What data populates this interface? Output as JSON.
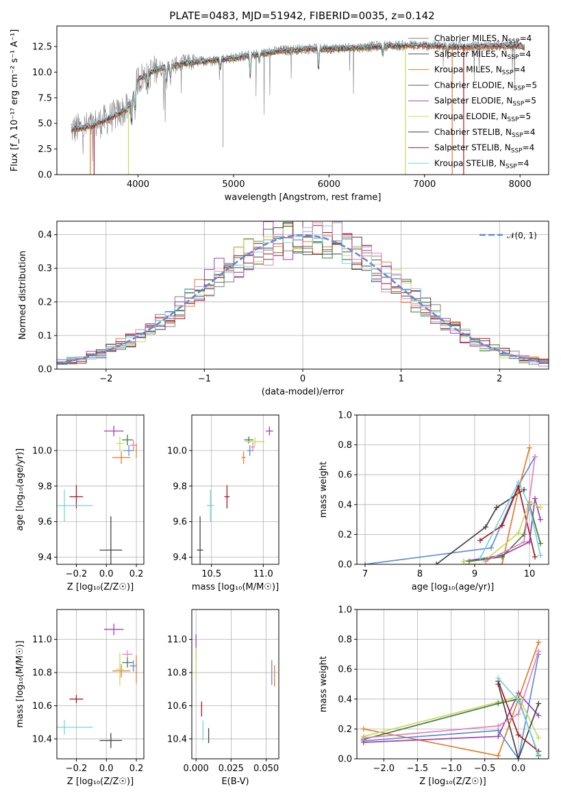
{
  "title": "PLATE=0483, MJD=51942, FIBERID=0035, z=0.142",
  "colors": {
    "chabrier_miles": "#7f7f7f",
    "salpeter_miles": "#4f4f4f",
    "kroupa_miles": "#e07b2a",
    "chabrier_elodie": "#3d7a3d",
    "salpeter_elodie": "#9b3fb0",
    "kroupa_elodie": "#c8d85a",
    "chabrier_stelib": "#404040",
    "salpeter_stelib": "#a8141e",
    "kroupa_stelib": "#72d3de",
    "blue": "#5f8ad6",
    "pink": "#e482b8",
    "grid": "#b0b0b0"
  },
  "legend_spectrum": [
    {
      "name": "Chabrier MILES",
      "nssp": "4",
      "color": "#7f7f7f"
    },
    {
      "name": "Salpeter MILES",
      "nssp": "4",
      "color": "#4f4f4f"
    },
    {
      "name": "Kroupa MILES",
      "nssp": "4",
      "color": "#e07b2a"
    },
    {
      "name": "Chabrier ELODIE",
      "nssp": "5",
      "color": "#3d7a3d"
    },
    {
      "name": "Salpeter ELODIE",
      "nssp": "5",
      "color": "#9b3fb0"
    },
    {
      "name": "Kroupa ELODIE",
      "nssp": "5",
      "color": "#c8d85a"
    },
    {
      "name": "Chabrier STELIB",
      "nssp": "4",
      "color": "#404040"
    },
    {
      "name": "Salpeter STELIB",
      "nssp": "4",
      "color": "#a8141e"
    },
    {
      "name": "Kroupa STELIB",
      "nssp": "4",
      "color": "#72d3de"
    }
  ],
  "chart_data": [
    {
      "id": "spectrum",
      "type": "line",
      "xlabel": "wavelength [Angstrom, rest frame]",
      "ylabel": "Flux [f_λ 10⁻¹⁷ erg cm⁻² s⁻¹ A⁻¹]",
      "xlim": [
        3150,
        8300
      ],
      "ylim": [
        0,
        14.5
      ],
      "xticks": [
        "4000",
        "5000",
        "6000",
        "7000",
        "8000"
      ],
      "yticks": [
        "0.0",
        "2.5",
        "5.0",
        "7.5",
        "10.0",
        "12.5"
      ],
      "continuum": [
        [
          3300,
          4.4
        ],
        [
          3500,
          4.7
        ],
        [
          3700,
          5.5
        ],
        [
          3900,
          6.5
        ],
        [
          4000,
          9.3
        ],
        [
          4200,
          10.3
        ],
        [
          4500,
          10.9
        ],
        [
          4800,
          11.2
        ],
        [
          5000,
          11.4
        ],
        [
          5200,
          11.7
        ],
        [
          5500,
          12.1
        ],
        [
          5800,
          12.3
        ],
        [
          6000,
          12.3
        ],
        [
          6300,
          12.4
        ],
        [
          6600,
          12.6
        ],
        [
          7000,
          12.6
        ],
        [
          7500,
          12.5
        ],
        [
          8000,
          12.6
        ],
        [
          8050,
          12.5
        ]
      ],
      "features": [
        [
          3934,
          -2.5
        ],
        [
          3969,
          -2.0
        ],
        [
          4102,
          -1.2
        ],
        [
          4300,
          -1.5
        ],
        [
          4340,
          -1.0
        ],
        [
          4861,
          -0.9
        ],
        [
          5175,
          -2.2
        ],
        [
          5270,
          -0.8
        ],
        [
          5890,
          -2.0
        ],
        [
          6563,
          -0.8
        ],
        [
          7240,
          -0.6
        ]
      ],
      "legend_position": "upper right"
    },
    {
      "id": "residuals",
      "type": "line",
      "xlabel": "(data-model)/error",
      "ylabel": "Normed distribution",
      "xlim": [
        -2.5,
        2.5
      ],
      "ylim": [
        0,
        0.44
      ],
      "xticks": [
        "−2",
        "−1",
        "0",
        "1",
        "2"
      ],
      "yticks": [
        "0.0",
        "0.1",
        "0.2",
        "0.3",
        "0.4"
      ],
      "grid": true,
      "reference_curve": "N(0,1)",
      "legend": "𝒩(0, 1)",
      "legend_position": "upper right"
    },
    {
      "id": "age_vs_Z",
      "type": "scatter",
      "xlabel": "Z [log₁₀(Z/Z☉)]",
      "ylabel": "age  [log₁₀(age/yr)]",
      "xlim": [
        -0.33,
        0.25
      ],
      "ylim": [
        9.36,
        10.2
      ],
      "xticks": [
        "−0.2",
        "0.0",
        "0.2"
      ],
      "yticks": [
        "9.4",
        "9.6",
        "9.8",
        "10.0"
      ],
      "grid": true,
      "points": [
        {
          "c": "salpeter_elodie",
          "x": 0.05,
          "y": 10.11,
          "xe": 0.13,
          "ye": 0.06
        },
        {
          "c": "chabrier_elodie",
          "x": 0.14,
          "y": 10.06,
          "xe": 0.07,
          "ye": 0.06
        },
        {
          "c": "pink",
          "x": 0.18,
          "y": 10.03,
          "xe": 0.05,
          "ye": 0.06
        },
        {
          "c": "blue",
          "x": 0.15,
          "y": 10.0,
          "xe": 0.07,
          "ye": 0.06
        },
        {
          "c": "kroupa_miles",
          "x": 0.1,
          "y": 9.96,
          "xe": 0.12,
          "ye": 0.07
        },
        {
          "c": "kroupa_elodie",
          "x": 0.09,
          "y": 10.04,
          "xe": 0.05,
          "ye": 0.08
        },
        {
          "c": "kroupa_miles",
          "x": 0.2,
          "y": 10.0,
          "xe": 0.0,
          "ye": 0.08
        },
        {
          "c": "salpeter_stelib",
          "x": -0.2,
          "y": 9.74,
          "xe": 0.09,
          "ye": 0.13
        },
        {
          "c": "kroupa_stelib",
          "x": -0.28,
          "y": 9.69,
          "xe": 0.38,
          "ye": 0.18
        },
        {
          "c": "chabrier_stelib",
          "x": 0.03,
          "y": 9.44,
          "xe": 0.15,
          "ye": 0.38
        }
      ]
    },
    {
      "id": "age_vs_mass",
      "type": "scatter",
      "xlabel": "mass [log₁₀(M/M☉)]",
      "ylabel": "",
      "xlim": [
        10.31,
        11.15
      ],
      "ylim": [
        9.36,
        10.2
      ],
      "xticks": [
        "10.5",
        "11.0"
      ],
      "yticks": [
        "9.4",
        "9.6",
        "9.8",
        "10.0"
      ],
      "grid": true,
      "points": [
        {
          "c": "salpeter_elodie",
          "x": 11.06,
          "y": 10.11,
          "xe": 0.07,
          "ye": 0.05
        },
        {
          "c": "chabrier_elodie",
          "x": 10.86,
          "y": 10.06,
          "xe": 0.09,
          "ye": 0.04
        },
        {
          "c": "kroupa_elodie",
          "x": 10.92,
          "y": 10.05,
          "xe": 0.19,
          "ye": 0.05
        },
        {
          "c": "pink",
          "x": 10.9,
          "y": 10.02,
          "xe": 0.04,
          "ye": 0.05
        },
        {
          "c": "blue",
          "x": 10.87,
          "y": 10.0,
          "xe": 0.05,
          "ye": 0.06
        },
        {
          "c": "kroupa_miles",
          "x": 10.81,
          "y": 9.96,
          "xe": 0.04,
          "ye": 0.07
        },
        {
          "c": "salpeter_stelib",
          "x": 10.65,
          "y": 9.74,
          "xe": 0.05,
          "ye": 0.13
        },
        {
          "c": "kroupa_stelib",
          "x": 10.49,
          "y": 9.69,
          "xe": 0.07,
          "ye": 0.18
        },
        {
          "c": "chabrier_stelib",
          "x": 10.39,
          "y": 9.44,
          "xe": 0.06,
          "ye": 0.38
        }
      ]
    },
    {
      "id": "massweight_vs_age",
      "type": "line",
      "xlabel": "age  [log₁₀(age/yr)]",
      "ylabel": "mass weight",
      "xlim": [
        6.85,
        10.35
      ],
      "ylim": [
        0,
        1
      ],
      "xticks": [
        "7",
        "8",
        "9",
        "10"
      ],
      "yticks": [
        "0.0",
        "0.2",
        "0.4",
        "0.6",
        "0.8",
        "1.0"
      ],
      "grid": true,
      "series": [
        {
          "c": "blue",
          "x": [
            7.0,
            9.3,
            9.8,
            10.1
          ],
          "y": [
            0.0,
            0.11,
            0.53,
            0.72
          ]
        },
        {
          "c": "chabrier_stelib",
          "x": [
            8.3,
            9.2,
            9.4,
            9.9
          ],
          "y": [
            0.0,
            0.25,
            0.38,
            0.5
          ]
        },
        {
          "c": "kroupa_miles",
          "x": [
            8.8,
            9.5,
            9.8,
            10.0
          ],
          "y": [
            0.0,
            0.0,
            0.5,
            0.78
          ]
        },
        {
          "c": "salpeter_stelib",
          "x": [
            9.1,
            9.5,
            9.8,
            10.1
          ],
          "y": [
            0.16,
            0.26,
            0.52,
            0.05
          ]
        },
        {
          "c": "salpeter_elodie",
          "x": [
            8.8,
            9.5,
            10.0,
            10.1,
            10.2
          ],
          "y": [
            0.02,
            0.06,
            0.15,
            0.44,
            0.3
          ]
        },
        {
          "c": "kroupa_elodie",
          "x": [
            8.8,
            9.2,
            9.8,
            10.0,
            10.2
          ],
          "y": [
            0.02,
            0.03,
            0.21,
            0.42,
            0.38
          ]
        },
        {
          "c": "chabrier_elodie",
          "x": [
            8.9,
            9.5,
            9.9,
            10.0,
            10.2
          ],
          "y": [
            0.02,
            0.05,
            0.2,
            0.4,
            0.14
          ]
        },
        {
          "c": "kroupa_stelib",
          "x": [
            9.1,
            9.8,
            10.0,
            10.2
          ],
          "y": [
            0.04,
            0.55,
            0.39,
            0.06
          ]
        },
        {
          "c": "pink",
          "x": [
            9.2,
            9.9,
            10.1
          ],
          "y": [
            0.02,
            0.15,
            0.72
          ]
        }
      ]
    },
    {
      "id": "mass_vs_Z",
      "type": "scatter",
      "xlabel": "Z [log₁₀(Z/Z☉)]",
      "ylabel": "mass [log₁₀(M/M☉)]",
      "xlim": [
        -0.33,
        0.25
      ],
      "ylim": [
        10.28,
        11.18
      ],
      "xticks": [
        "−0.2",
        "0.0",
        "0.2"
      ],
      "yticks": [
        "10.4",
        "10.6",
        "10.8",
        "11.0"
      ],
      "grid": true,
      "points": [
        {
          "c": "salpeter_elodie",
          "x": 0.05,
          "y": 11.06,
          "xe": 0.13,
          "ye": 0.07
        },
        {
          "c": "pink",
          "x": 0.14,
          "y": 10.91,
          "xe": 0.07,
          "ye": 0.05
        },
        {
          "c": "chabrier_elodie",
          "x": 0.14,
          "y": 10.86,
          "xe": 0.07,
          "ye": 0.06
        },
        {
          "c": "blue",
          "x": 0.18,
          "y": 10.84,
          "xe": 0.05,
          "ye": 0.07
        },
        {
          "c": "kroupa_miles",
          "x": 0.1,
          "y": 10.81,
          "xe": 0.12,
          "ye": 0.08
        },
        {
          "c": "kroupa_elodie",
          "x": 0.09,
          "y": 10.82,
          "xe": 0.05,
          "ye": 0.2
        },
        {
          "c": "kroupa_miles",
          "x": 0.2,
          "y": 10.82,
          "xe": 0.0,
          "ye": 0.17
        },
        {
          "c": "salpeter_stelib",
          "x": -0.2,
          "y": 10.64,
          "xe": 0.09,
          "ye": 0.05
        },
        {
          "c": "kroupa_stelib",
          "x": -0.28,
          "y": 10.47,
          "xe": 0.38,
          "ye": 0.09
        },
        {
          "c": "chabrier_stelib",
          "x": 0.03,
          "y": 10.39,
          "xe": 0.15,
          "ye": 0.09
        }
      ]
    },
    {
      "id": "mass_vs_ebv",
      "type": "scatter",
      "xlabel": "E(B-V)",
      "ylabel": "",
      "xlim": [
        -0.003,
        0.059
      ],
      "ylim": [
        10.28,
        11.18
      ],
      "xticks": [
        "0.000",
        "0.025",
        "0.050"
      ],
      "yticks": [
        "10.4",
        "10.6",
        "10.8",
        "11.0"
      ],
      "grid": true,
      "points": [
        {
          "c": "salpeter_elodie",
          "x": 0.0,
          "y": 10.95,
          "xe": 0.0,
          "ye": 0.16
        },
        {
          "c": "kroupa_elodie",
          "x": 0.0,
          "y": 10.85,
          "xe": 0.0,
          "ye": 0.2
        },
        {
          "c": "salpeter_stelib",
          "x": 0.004,
          "y": 10.58,
          "xe": 0.0,
          "ye": 0.09
        },
        {
          "c": "chabrier_stelib",
          "x": 0.009,
          "y": 10.42,
          "xe": 0.0,
          "ye": 0.09
        },
        {
          "c": "kroupa_stelib",
          "x": 0.005,
          "y": 10.45,
          "xe": 0.0,
          "ye": 0.12
        },
        {
          "c": "blue",
          "x": 0.054,
          "y": 10.8,
          "xe": 0.0,
          "ye": 0.15
        },
        {
          "c": "kroupa_miles",
          "x": 0.056,
          "y": 10.78,
          "xe": 0.0,
          "ye": 0.13
        }
      ]
    },
    {
      "id": "massweight_vs_Z",
      "type": "line",
      "xlabel": "Z [log₁₀(Z/Z☉)]",
      "ylabel": "mass weight",
      "xlim": [
        -2.4,
        0.45
      ],
      "ylim": [
        0,
        1
      ],
      "xticks": [
        "−2.0",
        "−1.5",
        "−1.0",
        "−0.5",
        "0.0"
      ],
      "yticks": [
        "0.0",
        "0.2",
        "0.4",
        "0.6",
        "0.8",
        "1.0"
      ],
      "grid": true,
      "series": [
        {
          "c": "kroupa_miles",
          "x": [
            -2.3,
            -0.3,
            0.0,
            0.3
          ],
          "y": [
            0.2,
            0.02,
            0.4,
            0.78
          ]
        },
        {
          "c": "blue",
          "x": [
            -2.3,
            -0.3,
            0.0,
            0.3
          ],
          "y": [
            0.12,
            0.19,
            0.0,
            0.7
          ]
        },
        {
          "c": "salpeter_elodie",
          "x": [
            -2.3,
            -0.3,
            0.0,
            0.3
          ],
          "y": [
            0.11,
            0.15,
            0.44,
            0.29
          ]
        },
        {
          "c": "kroupa_elodie",
          "x": [
            -2.3,
            -0.3,
            0.0,
            0.3
          ],
          "y": [
            0.15,
            0.38,
            0.42,
            0.14
          ]
        },
        {
          "c": "chabrier_elodie",
          "x": [
            -2.3,
            -0.3,
            0.0,
            0.3
          ],
          "y": [
            0.13,
            0.37,
            0.4,
            0.02
          ]
        },
        {
          "c": "salpeter_stelib",
          "x": [
            -0.3,
            0.0,
            0.3
          ],
          "y": [
            0.52,
            0.16,
            0.05
          ]
        },
        {
          "c": "chabrier_stelib",
          "x": [
            -0.3,
            0.0,
            0.3
          ],
          "y": [
            0.5,
            0.0,
            0.37
          ]
        },
        {
          "c": "kroupa_stelib",
          "x": [
            -0.3,
            0.0,
            0.3
          ],
          "y": [
            0.54,
            0.39,
            0.03
          ]
        },
        {
          "c": "pink",
          "x": [
            -2.3,
            -0.3,
            0.0,
            0.3
          ],
          "y": [
            0.14,
            0.22,
            0.3,
            0.72
          ]
        }
      ]
    }
  ]
}
